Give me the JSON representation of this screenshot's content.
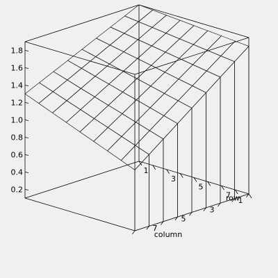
{
  "chart_data": {
    "type": "surface3d",
    "title": "",
    "axes": {
      "z": {
        "ticks": [
          "0.2",
          "0.4",
          "0.6",
          "0.8",
          "1.0",
          "1.2",
          "1.4",
          "1.6",
          "1.8"
        ],
        "range": [
          0.1,
          1.9
        ]
      },
      "column": {
        "label": "column",
        "ticks": [
          "1",
          "3",
          "5",
          "7"
        ],
        "range": [
          1,
          9
        ]
      },
      "row": {
        "label": "row",
        "ticks": [
          "1",
          "3",
          "5",
          "7"
        ],
        "range": [
          1,
          9
        ]
      }
    },
    "surface": {
      "description_free": true,
      "rows": [
        1,
        2,
        3,
        4,
        5,
        6,
        7,
        8,
        9
      ],
      "columns": [
        1,
        2,
        3,
        4,
        5,
        6,
        7,
        8,
        9
      ],
      "z_min": 0.1,
      "z_max": 1.9
    },
    "colors": {
      "high": "#d94fd9",
      "mid_high": "#8a5fd0",
      "mid": "#9fc8c0",
      "low_light": "#e8e0ea",
      "low": "#3fa84f"
    },
    "grid": false
  }
}
